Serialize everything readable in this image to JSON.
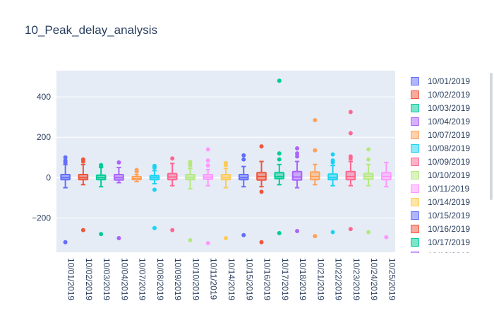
{
  "title": "10_Peak_delay_analysis",
  "chart_data": {
    "type": "box",
    "y_ticks": [
      -200,
      0,
      200,
      400
    ],
    "y_tick_labels": [
      "−200",
      "0",
      "200",
      "400"
    ],
    "ylim": [
      -370,
      530
    ],
    "grid": true,
    "legend_position": "right",
    "series": [
      {
        "name": "10/01/2019",
        "color": "#636efa",
        "q1": -10,
        "median": 0,
        "q3": 15,
        "low": -50,
        "high": 65,
        "outliers": [
          75,
          85,
          100,
          -320
        ]
      },
      {
        "name": "10/02/2019",
        "color": "#EF553B",
        "q1": -10,
        "median": 0,
        "q3": 15,
        "low": -35,
        "high": 65,
        "outliers": [
          80,
          90,
          -260
        ]
      },
      {
        "name": "10/03/2019",
        "color": "#00cc96",
        "q1": -10,
        "median": 0,
        "q3": 12,
        "low": -45,
        "high": 50,
        "outliers": [
          55,
          62,
          -280
        ]
      },
      {
        "name": "10/04/2019",
        "color": "#ab63fa",
        "q1": -12,
        "median": 0,
        "q3": 15,
        "low": -25,
        "high": 50,
        "outliers": [
          75,
          -300
        ]
      },
      {
        "name": "10/07/2019",
        "color": "#FFA15A",
        "q1": -10,
        "median": -5,
        "q3": 5,
        "low": -20,
        "high": 15,
        "outliers": [
          30,
          38
        ]
      },
      {
        "name": "10/08/2019",
        "color": "#19d3f3",
        "q1": -10,
        "median": 0,
        "q3": 10,
        "low": -30,
        "high": 35,
        "outliers": [
          50,
          58,
          -60,
          -250
        ]
      },
      {
        "name": "10/09/2019",
        "color": "#FF6692",
        "q1": -10,
        "median": 3,
        "q3": 20,
        "low": -40,
        "high": 70,
        "outliers": [
          95,
          -260
        ]
      },
      {
        "name": "10/10/2019",
        "color": "#B6E880",
        "q1": -10,
        "median": 0,
        "q3": 15,
        "low": -55,
        "high": 45,
        "outliers": [
          60,
          72,
          78,
          -310
        ]
      },
      {
        "name": "10/11/2019",
        "color": "#FF97FF",
        "q1": -8,
        "median": 2,
        "q3": 15,
        "low": -40,
        "high": 40,
        "outliers": [
          60,
          85,
          140,
          -325
        ]
      },
      {
        "name": "10/14/2019",
        "color": "#FECB52",
        "q1": -10,
        "median": 0,
        "q3": 15,
        "low": -50,
        "high": 45,
        "outliers": [
          62,
          72,
          -300
        ]
      },
      {
        "name": "10/15/2019",
        "color": "#636efa",
        "q1": -10,
        "median": 0,
        "q3": 15,
        "low": -45,
        "high": 55,
        "outliers": [
          90,
          110,
          -285
        ]
      },
      {
        "name": "10/16/2019",
        "color": "#EF553B",
        "q1": -12,
        "median": 5,
        "q3": 25,
        "low": -45,
        "high": 80,
        "outliers": [
          155,
          -70,
          -320
        ]
      },
      {
        "name": "10/17/2019",
        "color": "#00cc96",
        "q1": -5,
        "median": 5,
        "q3": 25,
        "low": -35,
        "high": 65,
        "outliers": [
          90,
          120,
          480,
          -275
        ]
      },
      {
        "name": "10/18/2019",
        "color": "#ab63fa",
        "q1": -12,
        "median": 3,
        "q3": 30,
        "low": -50,
        "high": 80,
        "outliers": [
          105,
          120,
          145,
          -265
        ]
      },
      {
        "name": "10/21/2019",
        "color": "#FFA15A",
        "q1": -10,
        "median": 5,
        "q3": 28,
        "low": -35,
        "high": 65,
        "outliers": [
          135,
          285,
          -290
        ]
      },
      {
        "name": "10/22/2019",
        "color": "#19d3f3",
        "q1": -10,
        "median": 0,
        "q3": 18,
        "low": -40,
        "high": 60,
        "outliers": [
          75,
          85,
          115,
          -270
        ]
      },
      {
        "name": "10/23/2019",
        "color": "#FF6692",
        "q1": -10,
        "median": 5,
        "q3": 30,
        "low": -40,
        "high": 80,
        "outliers": [
          95,
          105,
          220,
          325,
          -255
        ]
      },
      {
        "name": "10/24/2019",
        "color": "#B6E880",
        "q1": -8,
        "median": 5,
        "q3": 20,
        "low": -40,
        "high": 65,
        "outliers": [
          90,
          140,
          -270
        ]
      },
      {
        "name": "10/25/2019",
        "color": "#FF97FF",
        "q1": -10,
        "median": 5,
        "q3": 25,
        "low": -45,
        "high": 75,
        "outliers": [
          -295
        ]
      }
    ]
  }
}
